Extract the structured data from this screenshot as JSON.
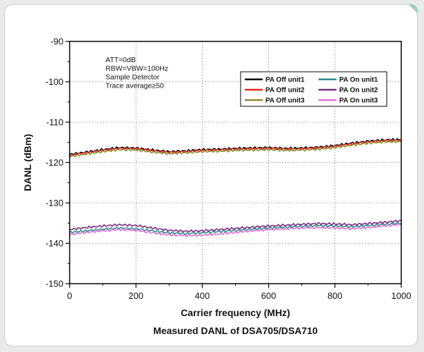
{
  "chart_data": {
    "type": "line",
    "title": "",
    "caption": "Measured DANL of DSA705/DSA710",
    "xlabel": "Carrier frequency (MHz)",
    "ylabel": "DANL (dBm)",
    "xlim": [
      0,
      1000
    ],
    "ylim": [
      -150,
      -90
    ],
    "xticks": [
      0,
      200,
      400,
      600,
      800,
      1000
    ],
    "yticks": [
      -90,
      -100,
      -110,
      -120,
      -130,
      -140,
      -150
    ],
    "grid": "dotted",
    "legend_position": "top-right",
    "annotations": [
      "ATT=0dB",
      "RBW=VBW=100Hz",
      "Sample Detector",
      "Trace average≥50"
    ],
    "x": [
      0,
      50,
      100,
      150,
      200,
      250,
      300,
      350,
      400,
      450,
      500,
      550,
      600,
      650,
      700,
      750,
      800,
      850,
      900,
      950,
      1000
    ],
    "series": [
      {
        "name": "PA Off unit1",
        "color": "#000000",
        "values": [
          -118.0,
          -117.4,
          -116.8,
          -116.3,
          -116.4,
          -116.9,
          -117.3,
          -117.1,
          -116.8,
          -116.7,
          -116.5,
          -116.4,
          -116.3,
          -116.5,
          -116.4,
          -116.2,
          -115.8,
          -115.2,
          -114.7,
          -114.4,
          -114.3
        ]
      },
      {
        "name": "PA Off unit2",
        "color": "#e8241c",
        "values": [
          -118.2,
          -117.6,
          -117.0,
          -116.5,
          -116.6,
          -117.1,
          -117.5,
          -117.3,
          -117.0,
          -116.9,
          -116.7,
          -116.6,
          -116.5,
          -116.7,
          -116.6,
          -116.4,
          -116.0,
          -115.4,
          -114.9,
          -114.6,
          -114.5
        ]
      },
      {
        "name": "PA Off unit3",
        "color": "#8c8a2a",
        "values": [
          -118.5,
          -117.9,
          -117.3,
          -116.8,
          -116.9,
          -117.4,
          -117.8,
          -117.6,
          -117.3,
          -117.2,
          -117.0,
          -116.9,
          -116.8,
          -117.0,
          -116.9,
          -116.7,
          -116.3,
          -115.7,
          -115.2,
          -114.9,
          -114.8
        ]
      },
      {
        "name": "PA On unit1",
        "color": "#2a8a8a",
        "values": [
          -137.3,
          -136.9,
          -136.5,
          -136.2,
          -136.4,
          -136.9,
          -137.4,
          -137.6,
          -137.4,
          -137.1,
          -136.8,
          -136.5,
          -136.2,
          -136.0,
          -135.8,
          -135.6,
          -135.7,
          -135.9,
          -135.6,
          -135.3,
          -135.0
        ]
      },
      {
        "name": "PA On unit2",
        "color": "#7a2a86",
        "values": [
          -136.6,
          -136.1,
          -135.7,
          -135.4,
          -135.6,
          -136.2,
          -136.8,
          -137.0,
          -136.9,
          -136.6,
          -136.3,
          -136.0,
          -135.7,
          -135.5,
          -135.3,
          -135.1,
          -135.2,
          -135.4,
          -135.1,
          -134.8,
          -134.4
        ]
      },
      {
        "name": "PA On unit3",
        "color": "#d86ed4",
        "values": [
          -137.8,
          -137.3,
          -136.9,
          -136.6,
          -136.8,
          -137.4,
          -137.9,
          -138.1,
          -138.0,
          -137.7,
          -137.3,
          -136.9,
          -136.6,
          -136.4,
          -136.2,
          -136.1,
          -136.2,
          -136.4,
          -136.1,
          -135.7,
          -135.3
        ]
      }
    ]
  }
}
